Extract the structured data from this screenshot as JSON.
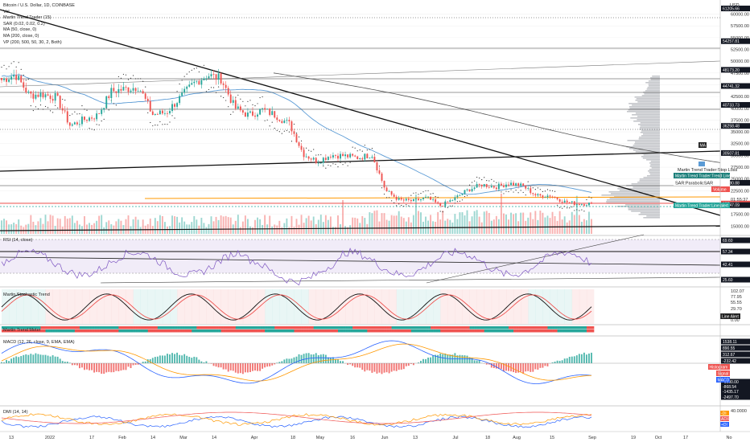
{
  "header": {
    "title": "Bitcoin / U.S. Dollar, 1D, COINBASE",
    "indicators": [
      "Vol",
      "Martin Trend Trader (15)",
      "SAR (0.02, 0.02, 0.2)",
      "MA (50, close, 0)",
      "MA (200, close, 0)",
      "VP (200, 500, 50, 30, 2, Both)"
    ],
    "currency": "USD"
  },
  "panes": {
    "rsi_title": "RSI (14, close)",
    "stoch_title": "Martin Stochastic Trend",
    "meter_title": "Martin Trend Meter",
    "macd_title": "MACD (12, 26, close, 9, EMA, EMA)",
    "dmi_title": "DMI (14, 14)"
  },
  "labels": {
    "ma": "MA",
    "stop_loss": "Martin Trend Trader:Stop Loss",
    "trend_line": "Martin Trend Trader:Trend Line",
    "sar": "SAR:ParabolicSAR",
    "volume": "Volume",
    "line_alert": "Martin Trend Trader:Line alert",
    "live_alert": "Line Alert",
    "histogram": "Histogram",
    "signal": "Signal",
    "macd": "MACD",
    "dmi_minus": "-DI",
    "adx": "ADX",
    "dmi_plus": "+DI",
    "countdown": "01:55:37"
  },
  "colors": {
    "up": "#26a69a",
    "down": "#ef5350",
    "ma50": "#5b9bd5",
    "ma200": "#555555",
    "orange": "#ff9800",
    "profile": "#b0b3b8"
  },
  "chart_data": [
    {
      "type": "candlestick",
      "title": "Bitcoin / U.S. Dollar, 1D, COINBASE",
      "ylabel": "USD",
      "ylim": [
        13000,
        63000
      ],
      "x_ticks": [
        "13",
        "2022",
        "17",
        "Feb",
        "14",
        "Mar",
        "14",
        "Apr",
        "18",
        "May",
        "16",
        "Jun",
        "13",
        "Jul",
        "18",
        "Aug",
        "15",
        "Sep",
        "19",
        "Oct",
        "17",
        "No"
      ],
      "y_ticks": [
        "60000.00",
        "57500.00",
        "55000.00",
        "52500.00",
        "50000.00",
        "47500.00",
        "45000.00",
        "42500.00",
        "40000.00",
        "37500.00",
        "35000.00",
        "32500.00",
        "30000.00",
        "27500.00",
        "25000.00",
        "22500.00",
        "20000.00",
        "17500.00",
        "15000.00"
      ],
      "price_tags": [
        "61205.66",
        "54257.81",
        "48173.20",
        "44741.32",
        "40733.73",
        "36258.48",
        "30507.81",
        "24180.88",
        "19783.79",
        "19447.09"
      ],
      "close_series_sample": [
        46000,
        47200,
        42800,
        43000,
        42300,
        36300,
        37600,
        38500,
        43600,
        44100,
        44600,
        38700,
        39100,
        42200,
        45300,
        47100,
        46300,
        40100,
        38500,
        39700,
        38500,
        36600,
        30300,
        28700,
        30100,
        29900,
        29500,
        30200,
        22500,
        20500,
        20300,
        21000,
        19300,
        20800,
        22700,
        23800,
        23300,
        24100,
        23500,
        21400,
        21500,
        20200,
        19700,
        19783
      ],
      "last_close": 19783.79
    },
    {
      "type": "line",
      "title": "RSI (14, close)",
      "ylim": [
        20,
        80
      ],
      "levels": [
        "69.60",
        "57.34",
        "42.41",
        "25.60"
      ],
      "last_value": 42.41
    },
    {
      "type": "line",
      "title": "Martin Stochastic Trend",
      "levels": [
        "102.07",
        "77.95",
        "55.55",
        "29.70",
        "0.00"
      ]
    },
    {
      "type": "bar",
      "title": "MACD (12, 26, close, 9, EMA, EMA)",
      "levels": [
        "1538.11",
        "890.55",
        "312.67",
        "-232.42",
        "-1000.00",
        "-868.54",
        "-1435.17",
        "-2497.70"
      ],
      "series": [
        {
          "name": "Histogram"
        },
        {
          "name": "Signal"
        },
        {
          "name": "MACD"
        }
      ]
    },
    {
      "type": "line",
      "title": "DMI (14, 14)",
      "levels": [
        "40.0000",
        "20.0000"
      ],
      "series": [
        {
          "name": "-DI"
        },
        {
          "name": "ADX"
        },
        {
          "name": "+DI"
        }
      ]
    }
  ]
}
